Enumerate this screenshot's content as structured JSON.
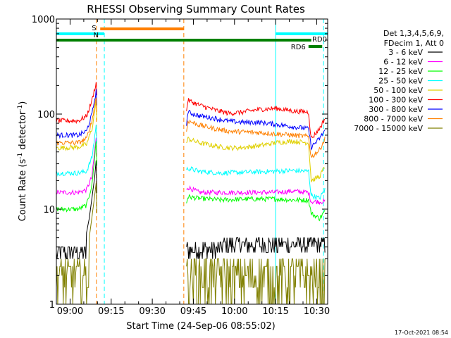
{
  "chart_data": {
    "type": "line",
    "title": "RHESSI Observing Summary Count Rates",
    "xlabel": "Start Time (24-Sep-06 08:55:02)",
    "ylabel_parts": [
      "Count Rate (s",
      "-1",
      " detector",
      "-1",
      ")"
    ],
    "yscale": "log",
    "ylim": [
      1,
      1000
    ],
    "x_unit": "minutes after 08:55:02",
    "xlim": [
      0,
      99
    ],
    "x_ticks": [
      {
        "t": 5,
        "label": "09:00"
      },
      {
        "t": 20,
        "label": "09:15"
      },
      {
        "t": 35,
        "label": "09:30"
      },
      {
        "t": 50,
        "label": "09:45"
      },
      {
        "t": 65,
        "label": "10:00"
      },
      {
        "t": 80,
        "label": "10:15"
      },
      {
        "t": 95,
        "label": "10:30"
      }
    ],
    "y_ticks": [
      {
        "v": 1,
        "label": "1"
      },
      {
        "v": 10,
        "label": "10"
      },
      {
        "v": 100,
        "label": "100"
      },
      {
        "v": 1000,
        "label": "1000"
      }
    ],
    "legend_header": [
      "Det 1,3,4,5,6,9,",
      "FDecim 1, Att 0"
    ],
    "series": [
      {
        "name": "3 - 6 keV",
        "color": "#000000",
        "points": [
          [
            0,
            3.5
          ],
          [
            8,
            3.5
          ],
          [
            10,
            4
          ],
          [
            12,
            8
          ],
          [
            14,
            22
          ],
          [
            14.6,
            35
          ],
          [
            15,
            3.5
          ],
          [
            47,
            3.5
          ],
          [
            48,
            3.6
          ],
          [
            65,
            4.2
          ],
          [
            75,
            4.5
          ],
          [
            85,
            4.8
          ],
          [
            92,
            4.8
          ],
          [
            96,
            4
          ],
          [
            98,
            3.2
          ]
        ]
      },
      {
        "name": "6 - 12 keV",
        "color": "#ff00ff",
        "points": [
          [
            0,
            15
          ],
          [
            8,
            15
          ],
          [
            11,
            16
          ],
          [
            13,
            22
          ],
          [
            14.6,
            60
          ],
          [
            15,
            15
          ],
          [
            47,
            15
          ],
          [
            48,
            17
          ],
          [
            52,
            15
          ],
          [
            60,
            15
          ],
          [
            70,
            15
          ],
          [
            80,
            15
          ],
          [
            86,
            15.5
          ],
          [
            92,
            15
          ],
          [
            93,
            12
          ],
          [
            98,
            12
          ]
        ]
      },
      {
        "name": "12 - 25 keV",
        "color": "#00ff00",
        "points": [
          [
            0,
            10
          ],
          [
            8,
            10
          ],
          [
            11,
            11
          ],
          [
            13,
            18
          ],
          [
            14.6,
            55
          ],
          [
            15,
            10
          ],
          [
            47,
            10
          ],
          [
            48,
            13.5
          ],
          [
            52,
            13
          ],
          [
            60,
            12.5
          ],
          [
            70,
            12.8
          ],
          [
            80,
            12.8
          ],
          [
            86,
            12.5
          ],
          [
            92,
            12.5
          ],
          [
            93,
            9
          ],
          [
            96,
            8
          ],
          [
            98,
            9.5
          ]
        ]
      },
      {
        "name": "25 - 50 keV",
        "color": "#00ffff",
        "points": [
          [
            0,
            24
          ],
          [
            8,
            24
          ],
          [
            11,
            25
          ],
          [
            13,
            35
          ],
          [
            14.6,
            80
          ],
          [
            15,
            24
          ],
          [
            47,
            24
          ],
          [
            48,
            27
          ],
          [
            52,
            25
          ],
          [
            60,
            24
          ],
          [
            70,
            24.5
          ],
          [
            80,
            25
          ],
          [
            86,
            25.5
          ],
          [
            92,
            25
          ],
          [
            93,
            14
          ],
          [
            96,
            13
          ],
          [
            98,
            16
          ]
        ]
      },
      {
        "name": "50 - 100 keV",
        "color": "#e0d000",
        "points": [
          [
            0,
            44
          ],
          [
            8,
            45
          ],
          [
            11,
            48
          ],
          [
            13,
            70
          ],
          [
            14.6,
            140
          ],
          [
            15,
            44
          ],
          [
            47,
            44
          ],
          [
            48,
            55
          ],
          [
            52,
            50
          ],
          [
            60,
            45
          ],
          [
            65,
            44
          ],
          [
            70,
            45
          ],
          [
            75,
            47
          ],
          [
            80,
            50
          ],
          [
            86,
            52
          ],
          [
            92,
            50
          ],
          [
            93,
            20
          ],
          [
            96,
            22
          ],
          [
            98,
            28
          ]
        ]
      },
      {
        "name": "100 - 300 keV",
        "color": "#ff0000",
        "points": [
          [
            0,
            85
          ],
          [
            8,
            85
          ],
          [
            11,
            95
          ],
          [
            13,
            140
          ],
          [
            14.6,
            220
          ],
          [
            15,
            85
          ],
          [
            47,
            85
          ],
          [
            48,
            140
          ],
          [
            52,
            125
          ],
          [
            58,
            110
          ],
          [
            63,
            102
          ],
          [
            68,
            105
          ],
          [
            74,
            112
          ],
          [
            80,
            115
          ],
          [
            86,
            108
          ],
          [
            92,
            105
          ],
          [
            93,
            55
          ],
          [
            96,
            70
          ],
          [
            98,
            90
          ]
        ]
      },
      {
        "name": "300 - 800 keV",
        "color": "#0000ff",
        "points": [
          [
            0,
            60
          ],
          [
            8,
            60
          ],
          [
            11,
            66
          ],
          [
            13,
            100
          ],
          [
            14.6,
            180
          ],
          [
            15,
            60
          ],
          [
            47,
            60
          ],
          [
            48,
            105
          ],
          [
            52,
            96
          ],
          [
            58,
            90
          ],
          [
            63,
            84
          ],
          [
            68,
            82
          ],
          [
            74,
            82
          ],
          [
            80,
            78
          ],
          [
            86,
            74
          ],
          [
            92,
            70
          ],
          [
            93,
            45
          ],
          [
            96,
            55
          ],
          [
            98,
            68
          ]
        ]
      },
      {
        "name": "800 - 7000 keV",
        "color": "#ff8000",
        "points": [
          [
            0,
            50
          ],
          [
            8,
            50
          ],
          [
            11,
            55
          ],
          [
            13,
            85
          ],
          [
            14.6,
            160
          ],
          [
            15,
            50
          ],
          [
            47,
            50
          ],
          [
            48,
            85
          ],
          [
            52,
            77
          ],
          [
            58,
            70
          ],
          [
            63,
            66
          ],
          [
            68,
            65
          ],
          [
            74,
            64
          ],
          [
            80,
            62
          ],
          [
            86,
            60
          ],
          [
            92,
            58
          ],
          [
            93,
            35
          ],
          [
            96,
            42
          ],
          [
            98,
            55
          ]
        ]
      },
      {
        "name": "7000 - 15000 keV",
        "color": "#808000",
        "points": [
          [
            0,
            2.5
          ],
          [
            8,
            2.5
          ],
          [
            10,
            2.6
          ],
          [
            12,
            5
          ],
          [
            14,
            14
          ],
          [
            14.6,
            20
          ],
          [
            15,
            2.5
          ],
          [
            47,
            2.5
          ],
          [
            48,
            2.1
          ],
          [
            55,
            1.8
          ],
          [
            60,
            2.0
          ],
          [
            65,
            2.1
          ],
          [
            70,
            2.2
          ],
          [
            75,
            2.3
          ],
          [
            80,
            2.2
          ],
          [
            85,
            2.3
          ],
          [
            90,
            2.2
          ],
          [
            92,
            2.0
          ],
          [
            96,
            1.5
          ],
          [
            98,
            2
          ]
        ]
      }
    ],
    "annotations": {
      "cyan_solid_t": [
        0,
        80
      ],
      "cyan_dashed_t": [
        17.5,
        97.5
      ],
      "orange_dashed_t": [
        14.6,
        46.5
      ],
      "bars": [
        {
          "label": "S",
          "color": "#ff8000",
          "t_start": 16,
          "t_end": 46.5,
          "level": "top"
        },
        {
          "label": "N",
          "color": "#00ffff",
          "t_start": 0,
          "t_end": 17.5,
          "level": "upper"
        },
        {
          "label": "",
          "color": "#00ffff",
          "t_start": 80,
          "t_end": 99,
          "level": "upper"
        },
        {
          "label": "RD0",
          "color": "#008000",
          "t_start": 0,
          "t_end": 93,
          "level": "middle"
        },
        {
          "label": "RD6",
          "color": "#008000",
          "t_start": 92,
          "t_end": 97,
          "level": "lower"
        }
      ]
    },
    "footer_timestamp": "17-Oct-2021 08:54"
  }
}
